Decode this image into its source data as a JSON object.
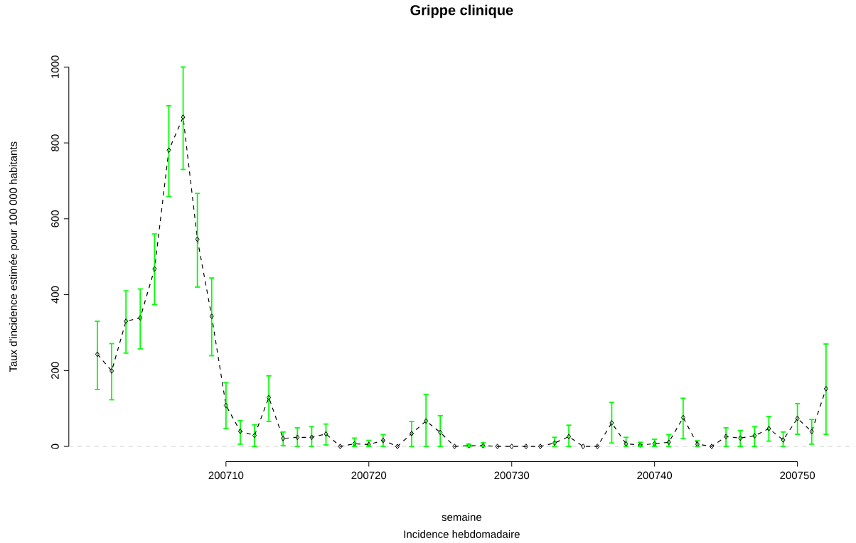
{
  "chart_data": {
    "type": "line",
    "title": "Grippe clinique",
    "xlabel": "semaine",
    "ylabel": "Taux d'incidence estimée pour 100 000 habitants",
    "annotations": [
      "Incidence hebdomadaire"
    ],
    "x": [
      200701,
      200702,
      200703,
      200704,
      200705,
      200706,
      200707,
      200708,
      200709,
      200710,
      200711,
      200712,
      200713,
      200714,
      200715,
      200716,
      200717,
      200718,
      200719,
      200720,
      200721,
      200722,
      200723,
      200724,
      200725,
      200726,
      200727,
      200728,
      200729,
      200730,
      200731,
      200732,
      200733,
      200734,
      200735,
      200736,
      200737,
      200738,
      200739,
      200740,
      200741,
      200742,
      200743,
      200744,
      200745,
      200746,
      200747,
      200748,
      200749,
      200750,
      200751,
      200752
    ],
    "series": [
      {
        "color": "#000000",
        "line_style": "dashed",
        "marker": "diamond",
        "values": [
          243,
          199,
          330,
          339,
          468,
          781,
          868,
          546,
          343,
          108,
          40,
          29,
          129,
          21,
          24,
          24,
          33,
          0,
          7,
          5,
          16,
          0,
          34,
          67,
          37,
          0,
          2,
          2,
          0,
          0,
          0,
          0,
          9,
          26,
          0,
          0,
          62,
          7,
          4,
          7,
          11,
          76,
          6,
          0,
          26,
          22,
          28,
          47,
          17,
          74,
          39,
          152
        ],
        "errors": [
          [
            150,
            330
          ],
          [
            123,
            271
          ],
          [
            246,
            410
          ],
          [
            257,
            415
          ],
          [
            374,
            560
          ],
          [
            659,
            898
          ],
          [
            730,
            1000
          ],
          [
            420,
            667
          ],
          [
            239,
            444
          ],
          [
            47,
            168
          ],
          [
            6,
            68
          ],
          [
            0,
            57
          ],
          [
            66,
            186
          ],
          [
            2,
            38
          ],
          [
            0,
            49
          ],
          [
            0,
            52
          ],
          [
            4,
            59
          ],
          null,
          [
            0,
            22
          ],
          [
            0,
            16
          ],
          [
            0,
            31
          ],
          null,
          [
            0,
            66
          ],
          [
            0,
            137
          ],
          [
            0,
            81
          ],
          null,
          [
            0,
            6
          ],
          [
            0,
            10
          ],
          null,
          null,
          null,
          null,
          [
            0,
            24
          ],
          [
            0,
            56
          ],
          null,
          null,
          [
            9,
            116
          ],
          [
            0,
            24
          ],
          [
            0,
            11
          ],
          [
            0,
            19
          ],
          [
            0,
            31
          ],
          [
            21,
            127
          ],
          [
            0,
            15
          ],
          null,
          [
            0,
            49
          ],
          [
            0,
            42
          ],
          [
            0,
            52
          ],
          [
            14,
            79
          ],
          [
            0,
            38
          ],
          [
            32,
            113
          ],
          [
            6,
            71
          ],
          [
            32,
            270
          ]
        ]
      }
    ],
    "ref_lines": [
      {
        "axis": "y",
        "value": 0,
        "color": "#d3d3d3",
        "line_style": "dashed"
      }
    ],
    "xlim": [
      200699,
      200754
    ],
    "ylim": [
      0,
      1000
    ],
    "xticks": [
      200710,
      200720,
      200730,
      200740,
      200750
    ],
    "yticks": [
      0,
      200,
      400,
      600,
      800,
      1000
    ]
  }
}
